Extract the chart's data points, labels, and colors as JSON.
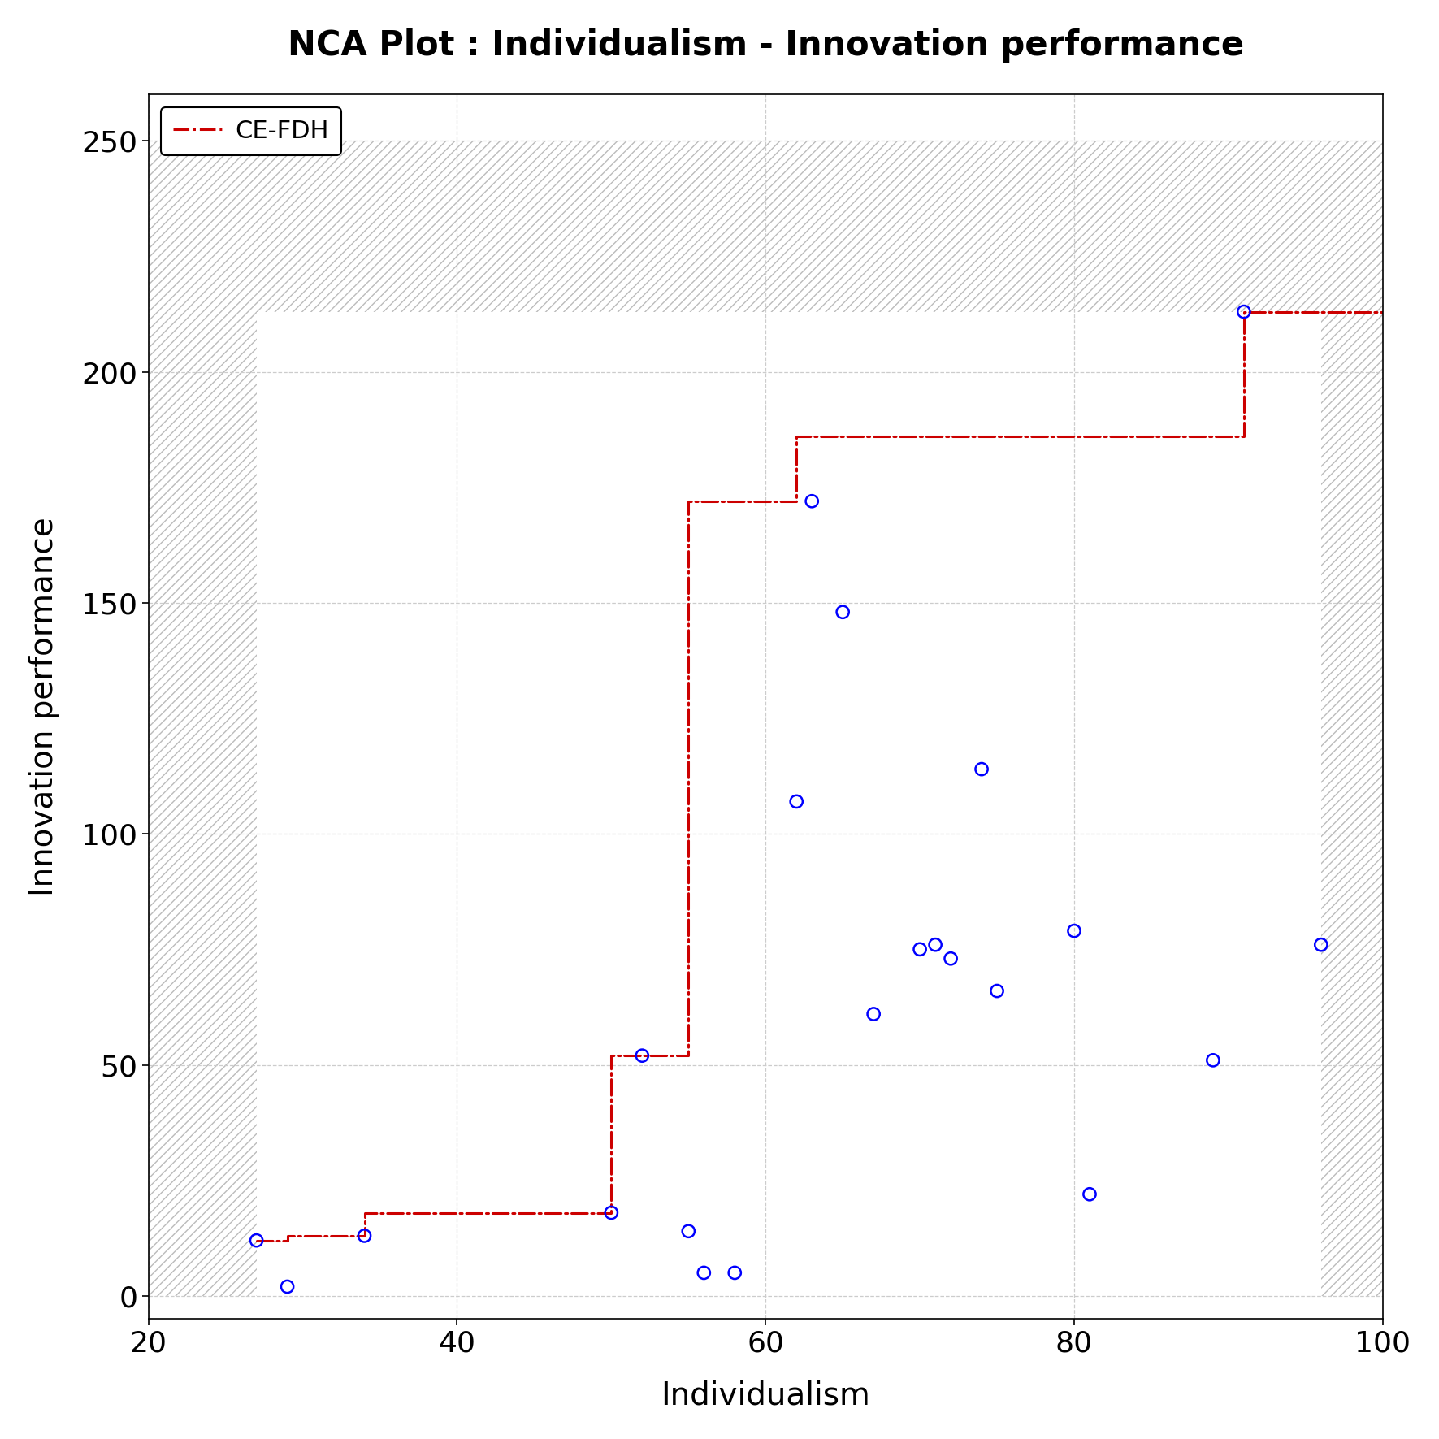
{
  "title": "NCA Plot : Individualism - Innovation performance",
  "xlabel": "Individualism",
  "ylabel": "Innovation performance",
  "xlim": [
    20,
    100
  ],
  "ylim": [
    -5,
    260
  ],
  "xticks": [
    20,
    40,
    60,
    80,
    100
  ],
  "yticks": [
    0,
    50,
    100,
    150,
    200,
    250
  ],
  "scatter_x": [
    27,
    29,
    34,
    50,
    52,
    55,
    56,
    58,
    62,
    63,
    65,
    67,
    70,
    71,
    72,
    74,
    75,
    80,
    81,
    89,
    91,
    96
  ],
  "scatter_y": [
    12,
    2,
    13,
    18,
    52,
    14,
    5,
    5,
    107,
    172,
    148,
    61,
    75,
    76,
    73,
    114,
    66,
    79,
    22,
    51,
    213,
    76
  ],
  "cefdh_x": [
    27,
    27,
    29,
    29,
    34,
    34,
    50,
    50,
    52,
    52,
    55,
    55,
    62,
    62,
    65,
    65,
    91,
    91,
    100
  ],
  "cefdh_y": [
    12,
    12,
    12,
    13,
    13,
    18,
    18,
    52,
    52,
    52,
    52,
    172,
    172,
    186,
    186,
    186,
    186,
    213,
    213
  ],
  "line_color": "#cc0000",
  "line_width": 2.2,
  "marker_color": "blue",
  "marker_size": 120,
  "scope_x_min": 27,
  "scope_x_max": 96,
  "scope_y_min": 0,
  "scope_y_max": 213,
  "theoretical_scope_x_min": 20,
  "theoretical_scope_x_max": 100,
  "theoretical_scope_y_min": 0,
  "theoretical_scope_y_max": 250,
  "background_color": "white",
  "hatch_pattern": "///",
  "hatch_color": "#bbbbbb",
  "legend_label": "CE-FDH",
  "grid_color": "#cccccc",
  "grid_style": "--"
}
